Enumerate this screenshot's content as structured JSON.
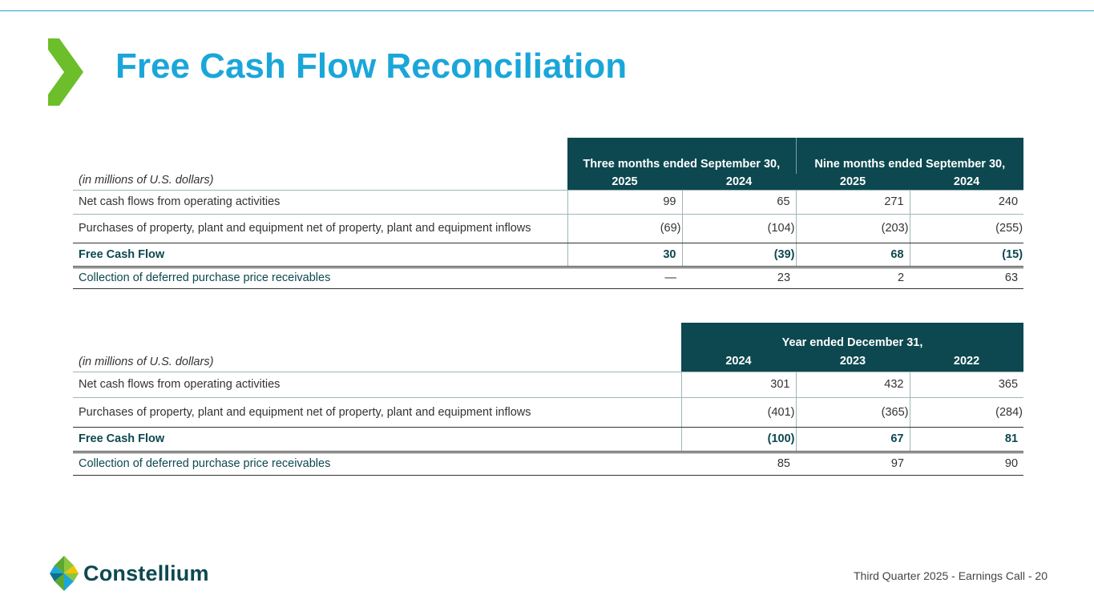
{
  "title": "Free Cash Flow Reconciliation",
  "brand_colors": {
    "accent_blue": "#1ba6d9",
    "accent_green": "#6cbe2a",
    "header_teal": "#0d4850"
  },
  "table1": {
    "unit_label": "(in millions of U.S. dollars)",
    "group_headers": [
      "Three months ended September 30,",
      "Nine months ended September 30,"
    ],
    "years": [
      "2025",
      "2024",
      "2025",
      "2024"
    ],
    "rows": [
      {
        "label": "Net cash flows from operating activities",
        "values": [
          "99",
          "65",
          "271",
          "240"
        ]
      },
      {
        "label": "Purchases of property, plant and equipment net of property, plant and equipment inflows",
        "values": [
          "(69)",
          "(104)",
          "(203)",
          "(255)"
        ]
      },
      {
        "label": "Free Cash Flow",
        "values": [
          "30",
          "(39)",
          "68",
          "(15)"
        ]
      },
      {
        "label": "Collection of deferred purchase price receivables",
        "values": [
          "—",
          "23",
          "2",
          "63"
        ]
      }
    ]
  },
  "table2": {
    "unit_label": "(in millions of U.S. dollars)",
    "group_header": "Year ended December 31,",
    "years": [
      "2024",
      "2023",
      "2022"
    ],
    "rows": [
      {
        "label": "Net cash flows from operating activities",
        "values": [
          "301",
          "432",
          "365"
        ]
      },
      {
        "label": "Purchases of property, plant and equipment net of property, plant and equipment inflows",
        "values": [
          "(401)",
          "(365)",
          "(284)"
        ]
      },
      {
        "label": "Free Cash Flow",
        "values": [
          "(100)",
          "67",
          "81"
        ]
      },
      {
        "label": "Collection of deferred purchase price receivables",
        "values": [
          "85",
          "97",
          "90"
        ]
      }
    ]
  },
  "logo": {
    "text": "Constellium",
    "icon": "constellium-star-icon"
  },
  "footer": "Third Quarter 2025 - Earnings Call - 20",
  "decor": {
    "chevron_icon": "chevron-right-icon"
  }
}
